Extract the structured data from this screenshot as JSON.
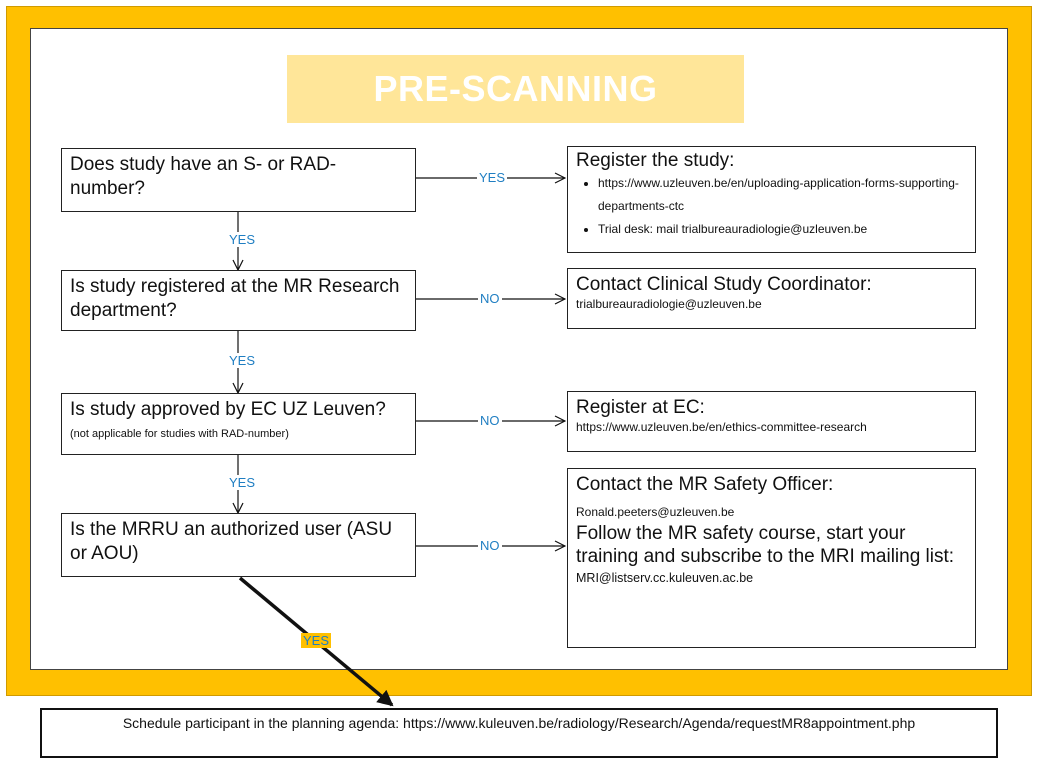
{
  "title": "PRE-SCANNING",
  "questions": [
    {
      "text": "Does study have an S- or RAD-number?"
    },
    {
      "text": "Is study registered at the MR Research department?"
    },
    {
      "text": "Is study approved by EC UZ Leuven?",
      "note": "(not applicable for studies with RAD-number)"
    },
    {
      "text": "Is the MRRU an authorized user (ASU or AOU)"
    }
  ],
  "actions": {
    "register_study": {
      "heading": "Register the study:",
      "bullets": [
        "https://www.uzleuven.be/en/uploading-application-forms-supporting-departments-ctc",
        "Trial desk: mail trialbureauradiologie@uzleuven.be"
      ]
    },
    "contact_coordinator": {
      "heading": "Contact Clinical Study Coordinator:",
      "email": "trialbureauradiologie@uzleuven.be"
    },
    "register_ec": {
      "heading": "Register at EC:",
      "url": "https://www.uzleuven.be/en/ethics-committee-research"
    },
    "safety_officer": {
      "heading": "Contact the MR Safety Officer:",
      "email": "Ronald.peeters@uzleuven.be",
      "text": "Follow the MR safety course, start your training and subscribe to the MRI mailing list:",
      "list_email": "MRI@listserv.cc.kuleuven.ac.be"
    }
  },
  "edge_labels": {
    "q1_right": "YES",
    "q1_down": "YES",
    "q2_right": "NO",
    "q2_down": "YES",
    "q3_right": "NO",
    "q3_down": "YES",
    "q4_right": "NO",
    "q4_down": "YES"
  },
  "final_step": "Schedule participant in the planning agenda: https://www.kuleuven.be/radiology/Research/Agenda/requestMR8appointment.php"
}
